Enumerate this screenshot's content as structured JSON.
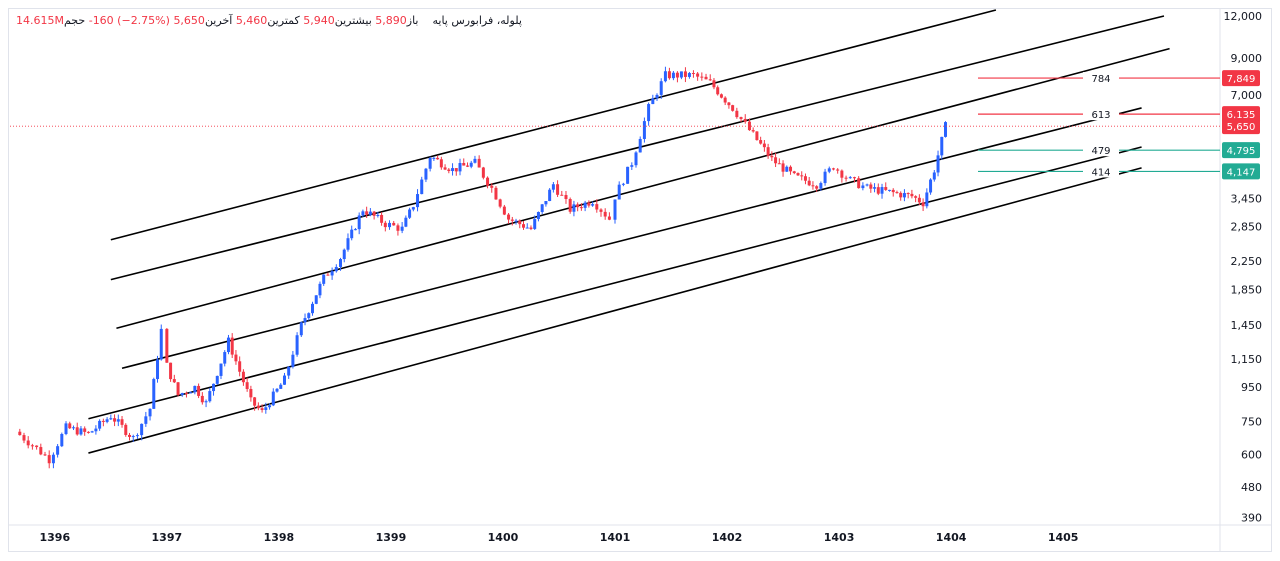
{
  "legend": {
    "symbol": "پلوله، فرابورس پایه",
    "open_label": "باز",
    "open": "5,890",
    "high_label": "بیشترین",
    "high": "5,940",
    "low_label": "کمترین",
    "low": "5,460",
    "close_label": "آخرین",
    "close": "5,650",
    "change": "-160 (−2.75%)",
    "volume_label": "حجم",
    "volume": "14.615M"
  },
  "colors": {
    "up": "#2962ff",
    "down": "#f23645",
    "green": "#22ab94",
    "channel": "#000000",
    "grid": "#e0e3eb"
  },
  "chart_data": {
    "type": "candlestick",
    "y_scale": "log",
    "ylim": [
      370,
      12500
    ],
    "xlim": [
      1395.6,
      1406.4
    ],
    "y_ticks": [
      "12,000",
      "9,000",
      "7,000",
      "3,450",
      "2,850",
      "2,250",
      "1,850",
      "1,450",
      "1,150",
      "950",
      "750",
      "600",
      "480",
      "390"
    ],
    "x_ticks": [
      "1396",
      "1397",
      "1398",
      "1399",
      "1400",
      "1401",
      "1402",
      "1403",
      "1404",
      "1405"
    ],
    "price_path": [
      [
        1395.65,
        700
      ],
      [
        1395.8,
        640
      ],
      [
        1395.95,
        580
      ],
      [
        1396.1,
        720
      ],
      [
        1396.3,
        690
      ],
      [
        1396.5,
        780
      ],
      [
        1396.7,
        670
      ],
      [
        1396.85,
        820
      ],
      [
        1396.95,
        1400
      ],
      [
        1397.0,
        1100
      ],
      [
        1397.1,
        900
      ],
      [
        1397.25,
        950
      ],
      [
        1397.35,
        850
      ],
      [
        1397.55,
        1300
      ],
      [
        1397.75,
        860
      ],
      [
        1397.85,
        800
      ],
      [
        1398.05,
        1000
      ],
      [
        1398.2,
        1450
      ],
      [
        1398.4,
        2000
      ],
      [
        1398.55,
        2300
      ],
      [
        1398.75,
        3200
      ],
      [
        1398.95,
        2900
      ],
      [
        1399.1,
        2800
      ],
      [
        1399.2,
        3300
      ],
      [
        1399.35,
        4600
      ],
      [
        1399.55,
        4200
      ],
      [
        1399.75,
        4400
      ],
      [
        1399.9,
        3700
      ],
      [
        1400.05,
        3000
      ],
      [
        1400.25,
        2800
      ],
      [
        1400.45,
        3800
      ],
      [
        1400.6,
        3200
      ],
      [
        1400.8,
        3400
      ],
      [
        1400.95,
        3000
      ],
      [
        1401.0,
        3500
      ],
      [
        1401.15,
        4400
      ],
      [
        1401.3,
        6400
      ],
      [
        1401.45,
        8000
      ],
      [
        1401.7,
        8000
      ],
      [
        1401.85,
        7600
      ],
      [
        1402.05,
        6400
      ],
      [
        1402.2,
        5500
      ],
      [
        1402.4,
        4500
      ],
      [
        1402.6,
        4000
      ],
      [
        1402.8,
        3800
      ],
      [
        1402.95,
        4300
      ],
      [
        1403.1,
        3900
      ],
      [
        1403.25,
        3700
      ],
      [
        1403.45,
        3600
      ],
      [
        1403.65,
        3500
      ],
      [
        1403.75,
        3350
      ],
      [
        1403.85,
        4200
      ],
      [
        1403.95,
        5650
      ]
    ],
    "channel_lines": [
      {
        "start": [
          1396.5,
          2600
        ],
        "end": [
          1404.4,
          12500
        ]
      },
      {
        "start": [
          1396.5,
          1980
        ],
        "end": [
          1405.9,
          12000
        ]
      },
      {
        "start": [
          1396.55,
          1420
        ],
        "end": [
          1405.95,
          9600
        ]
      },
      {
        "start": [
          1396.6,
          1080
        ],
        "end": [
          1405.7,
          6400
        ]
      },
      {
        "start": [
          1396.3,
          765
        ],
        "end": [
          1405.7,
          4900
        ]
      },
      {
        "start": [
          1396.3,
          605
        ],
        "end": [
          1405.7,
          4250
        ]
      }
    ],
    "levels": [
      {
        "label": "784",
        "value": 7849,
        "badge": "7,849",
        "color": "#f23645"
      },
      {
        "label": "613",
        "value": 6135,
        "badge": "6,135",
        "color": "#f23645"
      },
      {
        "label": "479",
        "value": 4795,
        "badge": "4,795",
        "color": "#22ab94"
      },
      {
        "label": "414",
        "value": 4147,
        "badge": "4,147",
        "color": "#22ab94"
      }
    ],
    "last_price": {
      "value": 5650,
      "badge": "5,650"
    }
  }
}
